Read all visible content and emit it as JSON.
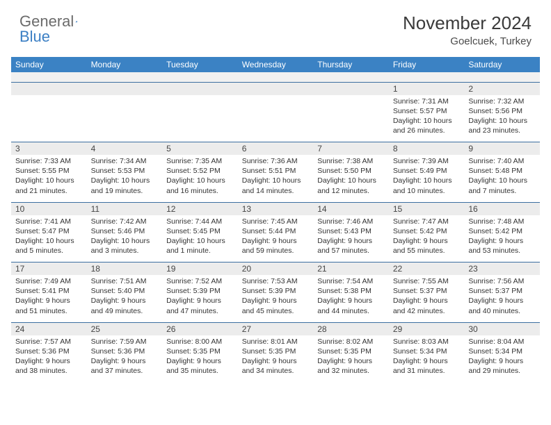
{
  "logo": {
    "text1": "General",
    "text2": "Blue"
  },
  "title": "November 2024",
  "location": "Goelcuek, Turkey",
  "colors": {
    "header_bg": "#3b82c4",
    "header_text": "#ffffff",
    "row_divider": "#3b6ea0",
    "daynum_bg": "#ececec",
    "body_text": "#333333",
    "logo_gray": "#6b6b6b",
    "logo_blue": "#3b7fc4"
  },
  "day_headers": [
    "Sunday",
    "Monday",
    "Tuesday",
    "Wednesday",
    "Thursday",
    "Friday",
    "Saturday"
  ],
  "weeks": [
    [
      null,
      null,
      null,
      null,
      null,
      {
        "n": "1",
        "sr": "Sunrise: 7:31 AM",
        "ss": "Sunset: 5:57 PM",
        "dl": "Daylight: 10 hours and 26 minutes."
      },
      {
        "n": "2",
        "sr": "Sunrise: 7:32 AM",
        "ss": "Sunset: 5:56 PM",
        "dl": "Daylight: 10 hours and 23 minutes."
      }
    ],
    [
      {
        "n": "3",
        "sr": "Sunrise: 7:33 AM",
        "ss": "Sunset: 5:55 PM",
        "dl": "Daylight: 10 hours and 21 minutes."
      },
      {
        "n": "4",
        "sr": "Sunrise: 7:34 AM",
        "ss": "Sunset: 5:53 PM",
        "dl": "Daylight: 10 hours and 19 minutes."
      },
      {
        "n": "5",
        "sr": "Sunrise: 7:35 AM",
        "ss": "Sunset: 5:52 PM",
        "dl": "Daylight: 10 hours and 16 minutes."
      },
      {
        "n": "6",
        "sr": "Sunrise: 7:36 AM",
        "ss": "Sunset: 5:51 PM",
        "dl": "Daylight: 10 hours and 14 minutes."
      },
      {
        "n": "7",
        "sr": "Sunrise: 7:38 AM",
        "ss": "Sunset: 5:50 PM",
        "dl": "Daylight: 10 hours and 12 minutes."
      },
      {
        "n": "8",
        "sr": "Sunrise: 7:39 AM",
        "ss": "Sunset: 5:49 PM",
        "dl": "Daylight: 10 hours and 10 minutes."
      },
      {
        "n": "9",
        "sr": "Sunrise: 7:40 AM",
        "ss": "Sunset: 5:48 PM",
        "dl": "Daylight: 10 hours and 7 minutes."
      }
    ],
    [
      {
        "n": "10",
        "sr": "Sunrise: 7:41 AM",
        "ss": "Sunset: 5:47 PM",
        "dl": "Daylight: 10 hours and 5 minutes."
      },
      {
        "n": "11",
        "sr": "Sunrise: 7:42 AM",
        "ss": "Sunset: 5:46 PM",
        "dl": "Daylight: 10 hours and 3 minutes."
      },
      {
        "n": "12",
        "sr": "Sunrise: 7:44 AM",
        "ss": "Sunset: 5:45 PM",
        "dl": "Daylight: 10 hours and 1 minute."
      },
      {
        "n": "13",
        "sr": "Sunrise: 7:45 AM",
        "ss": "Sunset: 5:44 PM",
        "dl": "Daylight: 9 hours and 59 minutes."
      },
      {
        "n": "14",
        "sr": "Sunrise: 7:46 AM",
        "ss": "Sunset: 5:43 PM",
        "dl": "Daylight: 9 hours and 57 minutes."
      },
      {
        "n": "15",
        "sr": "Sunrise: 7:47 AM",
        "ss": "Sunset: 5:42 PM",
        "dl": "Daylight: 9 hours and 55 minutes."
      },
      {
        "n": "16",
        "sr": "Sunrise: 7:48 AM",
        "ss": "Sunset: 5:42 PM",
        "dl": "Daylight: 9 hours and 53 minutes."
      }
    ],
    [
      {
        "n": "17",
        "sr": "Sunrise: 7:49 AM",
        "ss": "Sunset: 5:41 PM",
        "dl": "Daylight: 9 hours and 51 minutes."
      },
      {
        "n": "18",
        "sr": "Sunrise: 7:51 AM",
        "ss": "Sunset: 5:40 PM",
        "dl": "Daylight: 9 hours and 49 minutes."
      },
      {
        "n": "19",
        "sr": "Sunrise: 7:52 AM",
        "ss": "Sunset: 5:39 PM",
        "dl": "Daylight: 9 hours and 47 minutes."
      },
      {
        "n": "20",
        "sr": "Sunrise: 7:53 AM",
        "ss": "Sunset: 5:39 PM",
        "dl": "Daylight: 9 hours and 45 minutes."
      },
      {
        "n": "21",
        "sr": "Sunrise: 7:54 AM",
        "ss": "Sunset: 5:38 PM",
        "dl": "Daylight: 9 hours and 44 minutes."
      },
      {
        "n": "22",
        "sr": "Sunrise: 7:55 AM",
        "ss": "Sunset: 5:37 PM",
        "dl": "Daylight: 9 hours and 42 minutes."
      },
      {
        "n": "23",
        "sr": "Sunrise: 7:56 AM",
        "ss": "Sunset: 5:37 PM",
        "dl": "Daylight: 9 hours and 40 minutes."
      }
    ],
    [
      {
        "n": "24",
        "sr": "Sunrise: 7:57 AM",
        "ss": "Sunset: 5:36 PM",
        "dl": "Daylight: 9 hours and 38 minutes."
      },
      {
        "n": "25",
        "sr": "Sunrise: 7:59 AM",
        "ss": "Sunset: 5:36 PM",
        "dl": "Daylight: 9 hours and 37 minutes."
      },
      {
        "n": "26",
        "sr": "Sunrise: 8:00 AM",
        "ss": "Sunset: 5:35 PM",
        "dl": "Daylight: 9 hours and 35 minutes."
      },
      {
        "n": "27",
        "sr": "Sunrise: 8:01 AM",
        "ss": "Sunset: 5:35 PM",
        "dl": "Daylight: 9 hours and 34 minutes."
      },
      {
        "n": "28",
        "sr": "Sunrise: 8:02 AM",
        "ss": "Sunset: 5:35 PM",
        "dl": "Daylight: 9 hours and 32 minutes."
      },
      {
        "n": "29",
        "sr": "Sunrise: 8:03 AM",
        "ss": "Sunset: 5:34 PM",
        "dl": "Daylight: 9 hours and 31 minutes."
      },
      {
        "n": "30",
        "sr": "Sunrise: 8:04 AM",
        "ss": "Sunset: 5:34 PM",
        "dl": "Daylight: 9 hours and 29 minutes."
      }
    ]
  ]
}
